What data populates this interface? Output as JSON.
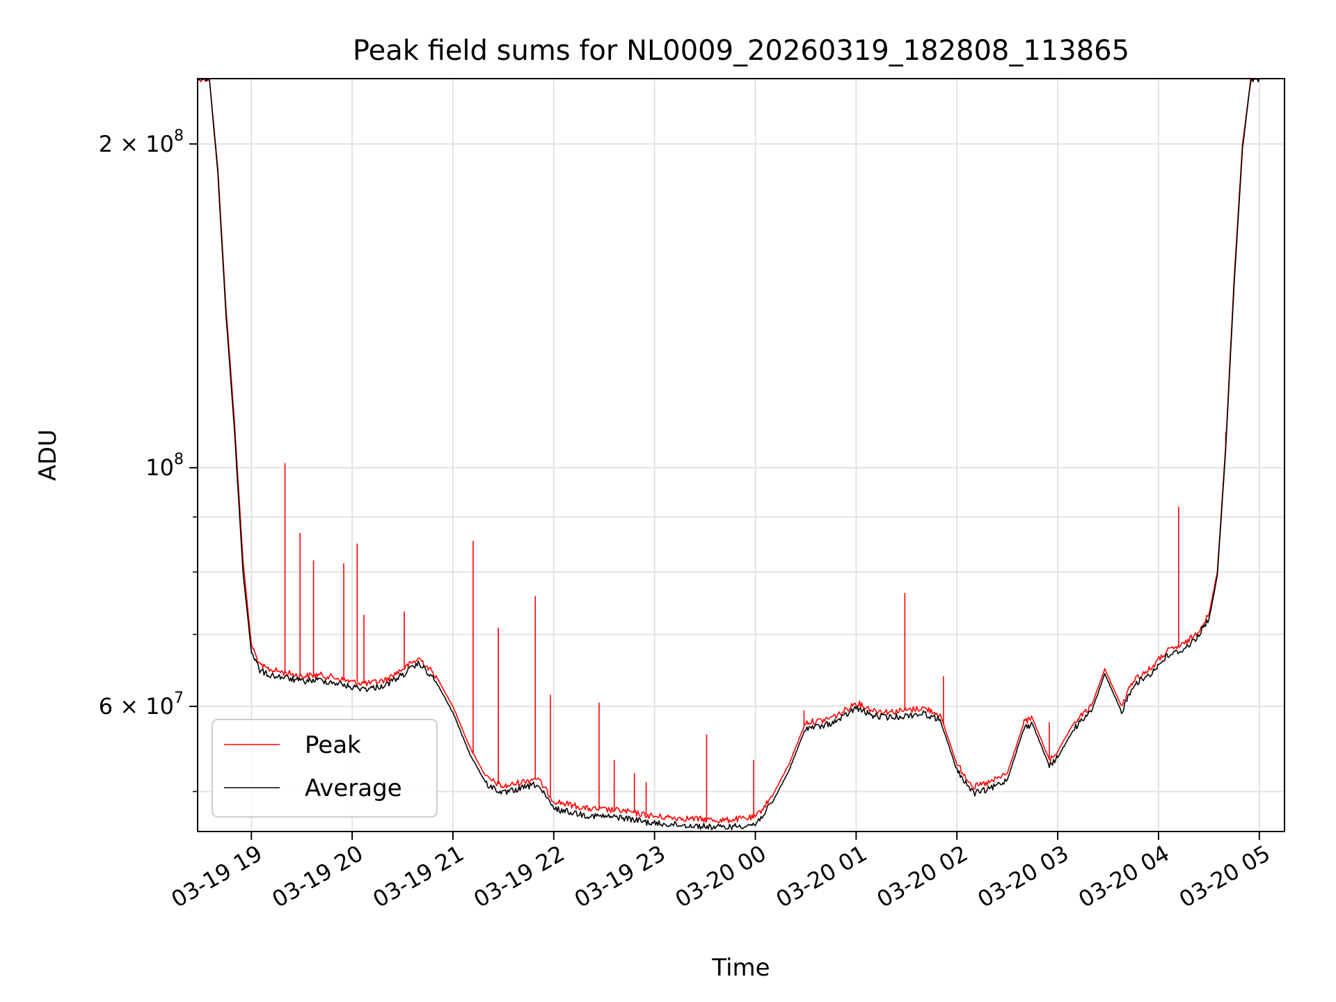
{
  "chart_data": {
    "type": "line",
    "title": "Peak field sums for NL0009_20260319_182808_113865",
    "xlabel": "Time",
    "ylabel": "ADU",
    "yscale": "log",
    "grid": true,
    "legend_position": "lower-left",
    "xlim": [
      "2026-03-19 18:28",
      "2026-03-20 05:15"
    ],
    "ylim": [
      45900000,
      230000000
    ],
    "x_ticks": [
      "03-19 19",
      "03-19 20",
      "03-19 21",
      "03-19 22",
      "03-19 23",
      "03-20 00",
      "03-20 01",
      "03-20 02",
      "03-20 03",
      "03-20 04",
      "03-20 05"
    ],
    "y_ticks": [
      {
        "value": 200000000,
        "mantissa": "2",
        "exponent": "8"
      },
      {
        "value": 100000000,
        "mantissa": "",
        "exponent": "8"
      },
      {
        "value": 60000000,
        "mantissa": "6",
        "exponent": "7"
      }
    ],
    "y_minor_ticks": [
      50000000,
      70000000,
      80000000,
      90000000
    ],
    "series": [
      {
        "name": "Peak",
        "color": "#ff0000",
        "x": [
          "2026-03-19 18:28",
          "2026-03-19 18:35",
          "2026-03-19 18:40",
          "2026-03-19 18:45",
          "2026-03-19 18:50",
          "2026-03-19 18:55",
          "2026-03-19 19:00",
          "2026-03-19 19:05",
          "2026-03-19 19:10",
          "2026-03-19 19:20",
          "2026-03-19 19:30",
          "2026-03-19 19:40",
          "2026-03-19 19:50",
          "2026-03-19 20:00",
          "2026-03-19 20:10",
          "2026-03-19 20:20",
          "2026-03-19 20:30",
          "2026-03-19 20:40",
          "2026-03-19 20:50",
          "2026-03-19 21:00",
          "2026-03-19 21:10",
          "2026-03-19 21:20",
          "2026-03-19 21:30",
          "2026-03-19 21:40",
          "2026-03-19 21:50",
          "2026-03-19 22:00",
          "2026-03-19 22:20",
          "2026-03-19 22:40",
          "2026-03-19 23:00",
          "2026-03-19 23:20",
          "2026-03-19 23:40",
          "2026-03-20 00:00",
          "2026-03-20 00:10",
          "2026-03-20 00:20",
          "2026-03-20 00:30",
          "2026-03-20 00:40",
          "2026-03-20 00:50",
          "2026-03-20 01:00",
          "2026-03-20 01:10",
          "2026-03-20 01:20",
          "2026-03-20 01:30",
          "2026-03-20 01:40",
          "2026-03-20 01:50",
          "2026-03-20 02:00",
          "2026-03-20 02:10",
          "2026-03-20 02:20",
          "2026-03-20 02:30",
          "2026-03-20 02:40",
          "2026-03-20 02:45",
          "2026-03-20 02:55",
          "2026-03-20 03:00",
          "2026-03-20 03:10",
          "2026-03-20 03:20",
          "2026-03-20 03:28",
          "2026-03-20 03:38",
          "2026-03-20 03:45",
          "2026-03-20 03:55",
          "2026-03-20 04:05",
          "2026-03-20 04:15",
          "2026-03-20 04:22",
          "2026-03-20 04:30",
          "2026-03-20 04:35",
          "2026-03-20 04:40",
          "2026-03-20 04:45",
          "2026-03-20 04:50",
          "2026-03-20 04:55",
          "2026-03-20 05:00"
        ],
        "values": [
          230000000,
          230000000,
          190000000,
          140000000,
          110000000,
          82000000,
          68500000,
          65500000,
          65000000,
          64500000,
          64000000,
          64200000,
          63800000,
          63200000,
          63000000,
          63500000,
          65000000,
          66500000,
          64000000,
          60000000,
          55000000,
          51500000,
          50500000,
          51000000,
          51500000,
          49000000,
          48200000,
          48000000,
          47400000,
          47200000,
          47000000,
          47300000,
          49500000,
          53000000,
          58000000,
          58200000,
          59000000,
          60500000,
          59500000,
          59300000,
          59500000,
          59800000,
          59000000,
          53000000,
          50500000,
          51000000,
          52000000,
          58000000,
          58500000,
          53500000,
          54500000,
          58000000,
          60000000,
          65000000,
          60000000,
          63500000,
          65000000,
          67500000,
          68500000,
          70000000,
          73000000,
          80000000,
          105000000,
          150000000,
          200000000,
          230000000,
          230000000
        ],
        "spikes": [
          [
            "2026-03-19 19:20",
            101000000
          ],
          [
            "2026-03-19 19:29",
            87000000
          ],
          [
            "2026-03-19 19:37",
            82000000
          ],
          [
            "2026-03-19 19:55",
            81500000
          ],
          [
            "2026-03-19 20:03",
            85000000
          ],
          [
            "2026-03-19 20:07",
            73000000
          ],
          [
            "2026-03-19 20:31",
            73500000
          ],
          [
            "2026-03-19 21:12",
            85500000
          ],
          [
            "2026-03-19 21:27",
            71000000
          ],
          [
            "2026-03-19 21:49",
            76000000
          ],
          [
            "2026-03-19 21:58",
            61500000
          ],
          [
            "2026-03-19 22:27",
            60500000
          ],
          [
            "2026-03-19 22:36",
            53500000
          ],
          [
            "2026-03-19 22:48",
            52000000
          ],
          [
            "2026-03-19 22:55",
            51000000
          ],
          [
            "2026-03-19 23:31",
            56500000
          ],
          [
            "2026-03-19 23:59",
            53500000
          ],
          [
            "2026-03-20 00:29",
            59500000
          ],
          [
            "2026-03-20 01:29",
            76500000
          ],
          [
            "2026-03-20 01:52",
            64000000
          ],
          [
            "2026-03-20 02:55",
            58000000
          ],
          [
            "2026-03-20 04:12",
            92000000
          ],
          [
            "2026-03-20 04:40",
            108000000
          ]
        ]
      },
      {
        "name": "Average",
        "color": "#000000",
        "x": [
          "2026-03-19 18:28",
          "2026-03-19 18:35",
          "2026-03-19 18:40",
          "2026-03-19 18:45",
          "2026-03-19 18:50",
          "2026-03-19 18:55",
          "2026-03-19 19:00",
          "2026-03-19 19:05",
          "2026-03-19 19:10",
          "2026-03-19 19:20",
          "2026-03-19 19:30",
          "2026-03-19 19:40",
          "2026-03-19 19:50",
          "2026-03-19 20:00",
          "2026-03-19 20:10",
          "2026-03-19 20:20",
          "2026-03-19 20:30",
          "2026-03-19 20:40",
          "2026-03-19 20:50",
          "2026-03-19 21:00",
          "2026-03-19 21:10",
          "2026-03-19 21:20",
          "2026-03-19 21:30",
          "2026-03-19 21:40",
          "2026-03-19 21:50",
          "2026-03-19 22:00",
          "2026-03-19 22:20",
          "2026-03-19 22:40",
          "2026-03-19 23:00",
          "2026-03-19 23:20",
          "2026-03-19 23:40",
          "2026-03-20 00:00",
          "2026-03-20 00:10",
          "2026-03-20 00:20",
          "2026-03-20 00:30",
          "2026-03-20 00:40",
          "2026-03-20 00:50",
          "2026-03-20 01:00",
          "2026-03-20 01:10",
          "2026-03-20 01:20",
          "2026-03-20 01:30",
          "2026-03-20 01:40",
          "2026-03-20 01:50",
          "2026-03-20 02:00",
          "2026-03-20 02:10",
          "2026-03-20 02:20",
          "2026-03-20 02:30",
          "2026-03-20 02:40",
          "2026-03-20 02:45",
          "2026-03-20 02:55",
          "2026-03-20 03:00",
          "2026-03-20 03:10",
          "2026-03-20 03:20",
          "2026-03-20 03:28",
          "2026-03-20 03:38",
          "2026-03-20 03:45",
          "2026-03-20 03:55",
          "2026-03-20 04:05",
          "2026-03-20 04:15",
          "2026-03-20 04:22",
          "2026-03-20 04:30",
          "2026-03-20 04:35",
          "2026-03-20 04:40",
          "2026-03-20 04:45",
          "2026-03-20 04:50",
          "2026-03-20 04:55",
          "2026-03-20 05:00"
        ],
        "values": [
          230000000,
          230000000,
          188000000,
          138000000,
          108000000,
          80000000,
          67500000,
          64800000,
          64200000,
          63800000,
          63300000,
          63500000,
          63100000,
          62500000,
          62300000,
          62800000,
          64200000,
          65800000,
          63200000,
          59200000,
          54200000,
          50800000,
          49800000,
          50300000,
          50800000,
          48200000,
          47500000,
          47300000,
          46700000,
          46500000,
          46300000,
          46600000,
          48800000,
          52300000,
          57300000,
          57500000,
          58300000,
          59800000,
          58800000,
          58600000,
          58800000,
          59100000,
          58300000,
          52300000,
          49800000,
          50300000,
          51300000,
          57300000,
          57800000,
          52800000,
          53800000,
          57300000,
          59300000,
          64300000,
          59300000,
          62800000,
          64300000,
          66800000,
          67800000,
          69300000,
          72300000,
          79300000,
          104000000,
          148000000,
          198000000,
          230000000,
          230000000
        ]
      }
    ]
  }
}
